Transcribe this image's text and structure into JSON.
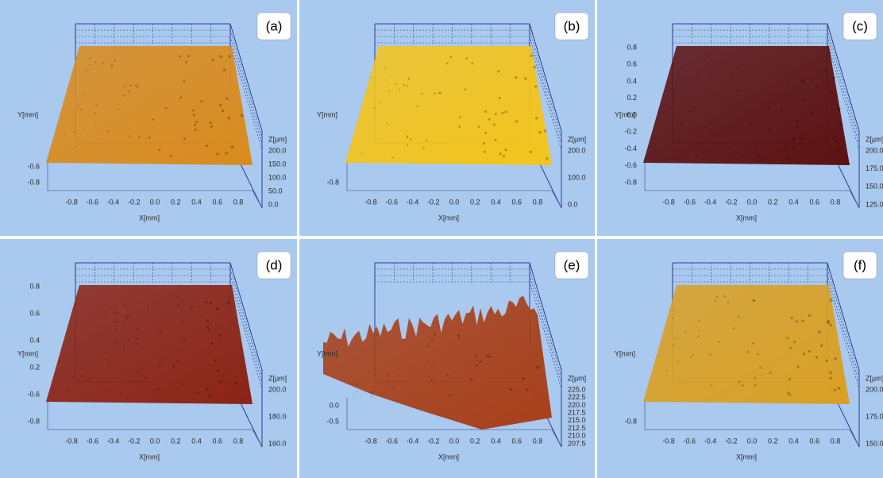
{
  "panels": [
    {
      "label": "(a)",
      "color": "#d98b1e",
      "x_axis_label": "X[mm]",
      "y_axis_label": "Y[mm]",
      "z_axis_label": "Z[µm]",
      "x_ticks": [
        "-0.8",
        "-0.6",
        "-0.4",
        "-0.2",
        "0.0",
        "0.2",
        "0.4",
        "0.6",
        "0.8"
      ],
      "y_ticks": [
        "-0.8",
        "-0.6"
      ],
      "z_ticks": [
        "200.0",
        "150.0",
        "100.0",
        "50.0",
        "0.0"
      ]
    },
    {
      "label": "(b)",
      "color": "#f3c41c",
      "x_axis_label": "X[mm]",
      "y_axis_label": "Y[mm]",
      "z_axis_label": "Z[µm]",
      "x_ticks": [
        "-0.8",
        "-0.6",
        "-0.4",
        "-0.2",
        "0.0",
        "0.2",
        "0.4",
        "0.6",
        "0.8"
      ],
      "y_ticks": [
        "-0.8"
      ],
      "z_ticks": [
        "200.0",
        "100.0",
        "0.0"
      ]
    },
    {
      "label": "(c)",
      "color": "#5c1212",
      "x_axis_label": "X[mm]",
      "y_axis_label": "Y[mm]",
      "z_axis_label": "Z[µm]",
      "x_ticks": [
        "-0.8",
        "-0.6",
        "-0.4",
        "-0.2",
        "0.0",
        "0.2",
        "0.4",
        "0.6",
        "0.8"
      ],
      "y_ticks": [
        "-0.8",
        "-0.6",
        "-0.4",
        "-0.2",
        "0.0",
        "0.2",
        "0.4",
        "0.6",
        "0.8"
      ],
      "z_ticks": [
        "200.0",
        "175.0",
        "150.0",
        "125.0"
      ]
    },
    {
      "label": "(d)",
      "color": "#8c2416",
      "x_axis_label": "X[mm]",
      "y_axis_label": "Y[mm]",
      "z_axis_label": "Z[µm]",
      "x_ticks": [
        "-0.8",
        "-0.6",
        "-0.4",
        "-0.2",
        "0.0",
        "0.2",
        "0.4",
        "0.6",
        "0.8"
      ],
      "y_ticks": [
        "-0.8",
        "-0.6",
        "0.2",
        "0.4",
        "0.6",
        "0.8"
      ],
      "z_ticks": [
        "200.0",
        "180.0",
        "160.0"
      ]
    },
    {
      "label": "(e)",
      "color": "#a8401a",
      "x_axis_label": "X[mm]",
      "y_axis_label": "Y[mm]",
      "z_axis_label": "Z[µm]",
      "x_ticks": [
        "-0.8",
        "-0.6",
        "-0.4",
        "-0.2",
        "0.0",
        "0.2",
        "0.4",
        "0.6",
        "0.8"
      ],
      "y_ticks": [
        "-0.5",
        "0.0"
      ],
      "z_ticks": [
        "225.0",
        "222.5",
        "220.0",
        "217.5",
        "215.0",
        "212.5",
        "210.0",
        "207.5"
      ]
    },
    {
      "label": "(f)",
      "color": "#d9a024",
      "x_axis_label": "X[mm]",
      "y_axis_label": "Y[mm]",
      "z_axis_label": "Z[µm]",
      "x_ticks": [
        "-0.8",
        "-0.6",
        "-0.4",
        "-0.2",
        "0.0",
        "0.2",
        "0.4",
        "0.6",
        "0.8"
      ],
      "y_ticks": [
        "-0.8"
      ],
      "z_ticks": [
        "200.0",
        "175.0",
        "150.0"
      ]
    }
  ]
}
